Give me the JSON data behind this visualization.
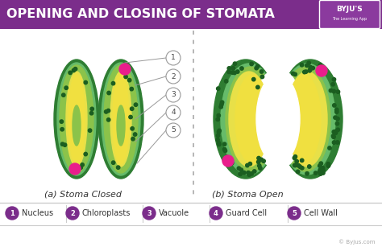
{
  "title": "OPENING AND CLOSING OF STOMATA",
  "title_bg": "#7b2d8b",
  "title_color": "#ffffff",
  "bg_color": "#ffffff",
  "label_a": "(a) Stoma Closed",
  "label_b": "(b) Stoma Open",
  "legend_items": [
    "1",
    "2",
    "3",
    "4",
    "5"
  ],
  "legend_labels": [
    "Nucleus",
    "Chloroplasts",
    "Vacuole",
    "Guard Cell",
    "Cell Wall"
  ],
  "legend_circle_color": "#7b2d8b",
  "legend_text_color": "#333333",
  "dark_green": "#2e7d32",
  "mid_green": "#66bb6a",
  "light_green": "#8bc34a",
  "yellow_green": "#e8e048",
  "yellow_inner": "#c8c820",
  "nucleus_color": "#e91e8c",
  "dot_color": "#1b5e20",
  "callout_circle_fill": "#ffffff",
  "callout_stroke": "#999999",
  "line_color": "#999999",
  "dashed_line_color": "#aaaaaa",
  "byline": "© Byjus.com",
  "legend_divider": "#cccccc"
}
